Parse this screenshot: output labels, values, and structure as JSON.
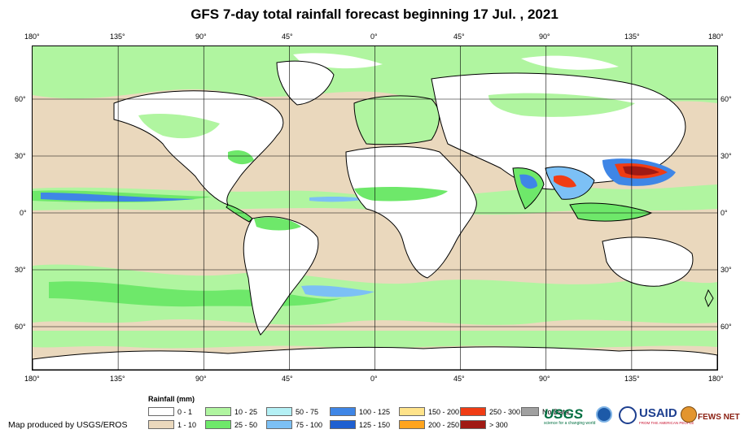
{
  "title": "GFS 7-day total rainfall forecast beginning 17 Jul. , 2021",
  "lon_ticks": [
    "180°",
    "135°",
    "90°",
    "45°",
    "0°",
    "45°",
    "90°",
    "135°",
    "180°"
  ],
  "lat_ticks": [
    "60°",
    "30°",
    "0°",
    "30°",
    "60°"
  ],
  "legend": {
    "title": "Rainfall (mm)",
    "items": [
      {
        "label": "0 - 1",
        "color": "#ffffff"
      },
      {
        "label": "1 - 10",
        "color": "#ead8bd"
      },
      {
        "label": "10 - 25",
        "color": "#b0f5a0"
      },
      {
        "label": "25 - 50",
        "color": "#6ee86a"
      },
      {
        "label": "50 - 75",
        "color": "#b4f0f5"
      },
      {
        "label": "75 - 100",
        "color": "#7cc0f5"
      },
      {
        "label": "100 - 125",
        "color": "#3f86e6"
      },
      {
        "label": "125 - 150",
        "color": "#1e5fd0"
      },
      {
        "label": "150 - 200",
        "color": "#ffe38a"
      },
      {
        "label": "200 - 250",
        "color": "#ffa41e"
      },
      {
        "label": "250 - 300",
        "color": "#f03c14"
      },
      {
        "label": "> 300",
        "color": "#a01a14"
      },
      {
        "label": "No Data",
        "color": "#a0a0a0"
      }
    ]
  },
  "credit": "Map produced by USGS/EROS",
  "logos": {
    "usgs": "USGS",
    "usgs_tagline": "science for a changing world",
    "usaid": "USAID",
    "usaid_tagline": "FROM THE AMERICAN PEOPLE",
    "fewsnet": "FEWS NET"
  },
  "colors": {
    "land_outline": "#000000",
    "graticule": "#000000",
    "ocean_dry": "#ead8bd"
  }
}
